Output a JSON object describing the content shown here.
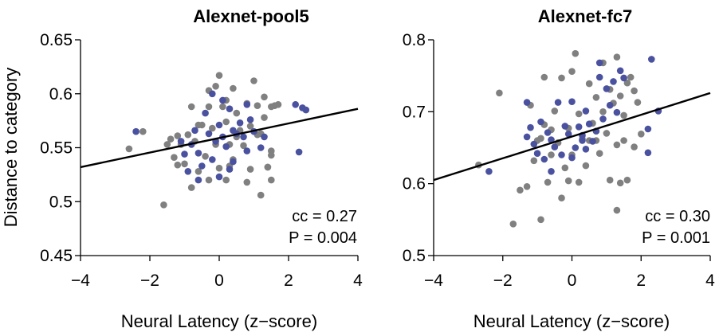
{
  "colors": {
    "gray": "#808080",
    "blue": "#4a52a0",
    "axis": "#000000"
  },
  "chart_data": [
    {
      "type": "scatter",
      "title": "Alexnet-pool5",
      "xlabel": "Neural Latency (z−score)",
      "ylabel": "Distance to category",
      "xlim": [
        -4,
        4
      ],
      "ylim": [
        0.45,
        0.65
      ],
      "xticks": [
        -4,
        -2,
        0,
        2,
        4
      ],
      "xtick_labels": [
        "−4",
        "−2",
        "0",
        "2",
        "4"
      ],
      "yticks": [
        0.45,
        0.5,
        0.55,
        0.6,
        0.65
      ],
      "ytick_labels": [
        "0.45",
        "0.5",
        "0.55",
        "0.6",
        "0.65"
      ],
      "annotations": [
        "cc = 0.27",
        "P = 0.004"
      ],
      "fit_line": {
        "x": [
          -4,
          4
        ],
        "y": [
          0.532,
          0.586
        ]
      },
      "series": [
        {
          "color": "gray",
          "points": [
            [
              -2.6,
              0.549
            ],
            [
              -2.2,
              0.565
            ],
            [
              -1.6,
              0.497
            ],
            [
              -1.5,
              0.553
            ],
            [
              -1.3,
              0.541
            ],
            [
              -1.2,
              0.561
            ],
            [
              -1.1,
              0.553
            ],
            [
              -1.0,
              0.535
            ],
            [
              -0.9,
              0.562
            ],
            [
              -0.8,
              0.588
            ],
            [
              -0.8,
              0.513
            ],
            [
              -0.7,
              0.556
            ],
            [
              -0.6,
              0.528
            ],
            [
              -0.5,
              0.571
            ],
            [
              -0.4,
              0.542
            ],
            [
              -0.3,
              0.603
            ],
            [
              -0.3,
              0.52
            ],
            [
              -0.2,
              0.568
            ],
            [
              -0.1,
              0.607
            ],
            [
              -0.1,
              0.553
            ],
            [
              0.0,
              0.531
            ],
            [
              0.0,
              0.617
            ],
            [
              0.1,
              0.588
            ],
            [
              0.2,
              0.574
            ],
            [
              0.2,
              0.52
            ],
            [
              0.3,
              0.553
            ],
            [
              0.4,
              0.605
            ],
            [
              0.4,
              0.539
            ],
            [
              0.5,
              0.582
            ],
            [
              0.6,
              0.566
            ],
            [
              0.7,
              0.552
            ],
            [
              0.8,
              0.591
            ],
            [
              0.9,
              0.57
            ],
            [
              0.9,
              0.53
            ],
            [
              1.0,
              0.612
            ],
            [
              1.1,
              0.562
            ],
            [
              1.1,
              0.589
            ],
            [
              1.2,
              0.506
            ],
            [
              1.3,
              0.578
            ],
            [
              1.4,
              0.532
            ],
            [
              1.5,
              0.588
            ],
            [
              1.6,
              0.589
            ],
            [
              1.7,
              0.59
            ],
            [
              1.5,
              0.547
            ],
            [
              1.3,
              0.597
            ],
            [
              0.2,
              0.594
            ],
            [
              -0.6,
              0.571
            ],
            [
              0.8,
              0.518
            ],
            [
              -1.4,
              0.558
            ],
            [
              0.5,
              0.56
            ],
            [
              1.5,
              0.543
            ],
            [
              1.5,
              0.52
            ],
            [
              1.4,
              0.532
            ],
            [
              1.2,
              0.563
            ],
            [
              -1.2,
              0.534
            ],
            [
              -0.3,
              0.588
            ],
            [
              0.3,
              0.533
            ]
          ]
        },
        {
          "color": "blue",
          "points": [
            [
              -2.4,
              0.565
            ],
            [
              -1.1,
              0.556
            ],
            [
              -1.0,
              0.544
            ],
            [
              -0.9,
              0.528
            ],
            [
              -0.8,
              0.553
            ],
            [
              -0.7,
              0.566
            ],
            [
              -0.6,
              0.545
            ],
            [
              -0.5,
              0.533
            ],
            [
              -0.4,
              0.582
            ],
            [
              -0.3,
              0.563
            ],
            [
              -0.2,
              0.539
            ],
            [
              -0.1,
              0.556
            ],
            [
              0.0,
              0.523
            ],
            [
              0.0,
              0.571
            ],
            [
              0.1,
              0.594
            ],
            [
              0.2,
              0.551
            ],
            [
              0.3,
              0.586
            ],
            [
              0.4,
              0.566
            ],
            [
              0.4,
              0.537
            ],
            [
              0.5,
              0.563
            ],
            [
              0.6,
              0.573
            ],
            [
              0.7,
              0.56
            ],
            [
              0.8,
              0.59
            ],
            [
              0.8,
              0.547
            ],
            [
              0.9,
              0.576
            ],
            [
              1.0,
              0.565
            ],
            [
              1.2,
              0.55
            ],
            [
              1.3,
              0.56
            ],
            [
              2.3,
              0.546
            ],
            [
              2.2,
              0.59
            ],
            [
              2.4,
              0.587
            ],
            [
              2.5,
              0.585
            ],
            [
              -0.6,
              0.52
            ],
            [
              0.1,
              0.56
            ],
            [
              -0.2,
              0.6
            ],
            [
              0.3,
              0.53
            ]
          ]
        }
      ]
    },
    {
      "type": "scatter",
      "title": "Alexnet-fc7",
      "xlabel": "Neural Latency (z−score)",
      "ylabel": "",
      "xlim": [
        -4,
        4
      ],
      "ylim": [
        0.5,
        0.8
      ],
      "xticks": [
        -4,
        -2,
        0,
        2,
        4
      ],
      "xtick_labels": [
        "−4",
        "−2",
        "0",
        "2",
        "4"
      ],
      "yticks": [
        0.5,
        0.6,
        0.7,
        0.8
      ],
      "ytick_labels": [
        "0.5",
        "0.6",
        "0.7",
        "0.8"
      ],
      "annotations": [
        "cc = 0.30",
        "P = 0.001"
      ],
      "fit_line": {
        "x": [
          -4,
          4
        ],
        "y": [
          0.605,
          0.726
        ]
      },
      "series": [
        {
          "color": "gray",
          "points": [
            [
              -2.7,
              0.626
            ],
            [
              -2.1,
              0.726
            ],
            [
              -1.7,
              0.544
            ],
            [
              -1.5,
              0.591
            ],
            [
              -1.3,
              0.596
            ],
            [
              -1.2,
              0.709
            ],
            [
              -1.1,
              0.632
            ],
            [
              -1.0,
              0.66
            ],
            [
              -0.9,
              0.55
            ],
            [
              -0.8,
              0.682
            ],
            [
              -0.8,
              0.748
            ],
            [
              -0.7,
              0.602
            ],
            [
              -0.6,
              0.64
            ],
            [
              -0.5,
              0.701
            ],
            [
              -0.4,
              0.657
            ],
            [
              -0.3,
              0.58
            ],
            [
              -0.3,
              0.747
            ],
            [
              -0.2,
              0.622
            ],
            [
              -0.1,
              0.677
            ],
            [
              -0.1,
              0.604
            ],
            [
              0.0,
              0.756
            ],
            [
              0.0,
              0.64
            ],
            [
              0.1,
              0.781
            ],
            [
              0.2,
              0.697
            ],
            [
              0.3,
              0.662
            ],
            [
              0.4,
              0.625
            ],
            [
              0.5,
              0.66
            ],
            [
              0.6,
              0.684
            ],
            [
              0.7,
              0.66
            ],
            [
              0.7,
              0.72
            ],
            [
              0.8,
              0.642
            ],
            [
              0.9,
              0.7
            ],
            [
              0.9,
              0.768
            ],
            [
              1.0,
              0.67
            ],
            [
              1.1,
              0.731
            ],
            [
              1.2,
              0.712
            ],
            [
              1.3,
              0.776
            ],
            [
              1.3,
              0.654
            ],
            [
              1.4,
              0.601
            ],
            [
              1.4,
              0.722
            ],
            [
              1.5,
              0.695
            ],
            [
              1.6,
              0.74
            ],
            [
              1.7,
              0.748
            ],
            [
              1.8,
              0.729
            ],
            [
              1.9,
              0.713
            ],
            [
              2.0,
              0.669
            ],
            [
              1.1,
              0.605
            ],
            [
              1.3,
              0.563
            ],
            [
              1.5,
              0.66
            ],
            [
              0.5,
              0.739
            ],
            [
              -0.6,
              0.675
            ],
            [
              -0.9,
              0.663
            ],
            [
              0.2,
              0.602
            ],
            [
              1.6,
              0.605
            ],
            [
              1.8,
              0.651
            ]
          ]
        },
        {
          "color": "blue",
          "points": [
            [
              -2.4,
              0.617
            ],
            [
              -1.3,
              0.665
            ],
            [
              -1.2,
              0.678
            ],
            [
              -1.1,
              0.655
            ],
            [
              -1.0,
              0.642
            ],
            [
              -0.9,
              0.686
            ],
            [
              -0.8,
              0.634
            ],
            [
              -0.7,
              0.671
            ],
            [
              -0.6,
              0.661
            ],
            [
              -0.5,
              0.651
            ],
            [
              -0.4,
              0.713
            ],
            [
              -0.3,
              0.64
            ],
            [
              -0.2,
              0.68
            ],
            [
              -0.1,
              0.669
            ],
            [
              0.0,
              0.636
            ],
            [
              0.0,
              0.714
            ],
            [
              0.1,
              0.65
            ],
            [
              0.2,
              0.679
            ],
            [
              0.3,
              0.667
            ],
            [
              0.4,
              0.701
            ],
            [
              0.4,
              0.648
            ],
            [
              0.5,
              0.683
            ],
            [
              0.6,
              0.659
            ],
            [
              0.7,
              0.673
            ],
            [
              0.8,
              0.748
            ],
            [
              0.9,
              0.69
            ],
            [
              1.0,
              0.732
            ],
            [
              1.1,
              0.709
            ],
            [
              1.2,
              0.742
            ],
            [
              1.3,
              0.699
            ],
            [
              1.4,
              0.757
            ],
            [
              1.5,
              0.747
            ],
            [
              2.2,
              0.643
            ],
            [
              2.3,
              0.773
            ],
            [
              2.2,
              0.676
            ],
            [
              2.5,
              0.701
            ],
            [
              0.8,
              0.768
            ],
            [
              -1.3,
              0.713
            ],
            [
              -0.6,
              0.617
            ],
            [
              0.3,
              0.66
            ]
          ]
        }
      ]
    }
  ]
}
